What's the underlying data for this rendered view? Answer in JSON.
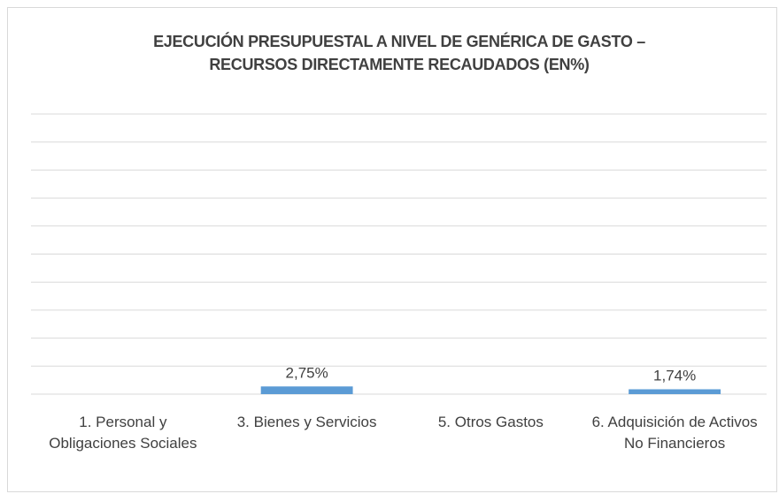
{
  "chart_data": {
    "type": "bar",
    "title": "EJECUCIÓN PRESUPUESTAL A NIVEL DE GENÉRICA DE GASTO – RECURSOS DIRECTAMENTE RECAUDADOS (EN%)",
    "categories": [
      "1. Personal y Obligaciones Sociales",
      "3. Bienes y Servicios",
      "5. Otros Gastos",
      "6. Adquisición de Activos No Financieros"
    ],
    "values": [
      null,
      2.75,
      null,
      1.74
    ],
    "value_labels": [
      null,
      "2,75%",
      null,
      "1,74%"
    ],
    "color": "#5b9bd5",
    "ylim": [
      0,
      100
    ],
    "yticks": [
      0,
      10,
      20,
      30,
      40,
      50,
      60,
      70,
      80,
      90,
      100
    ],
    "grid": true
  }
}
